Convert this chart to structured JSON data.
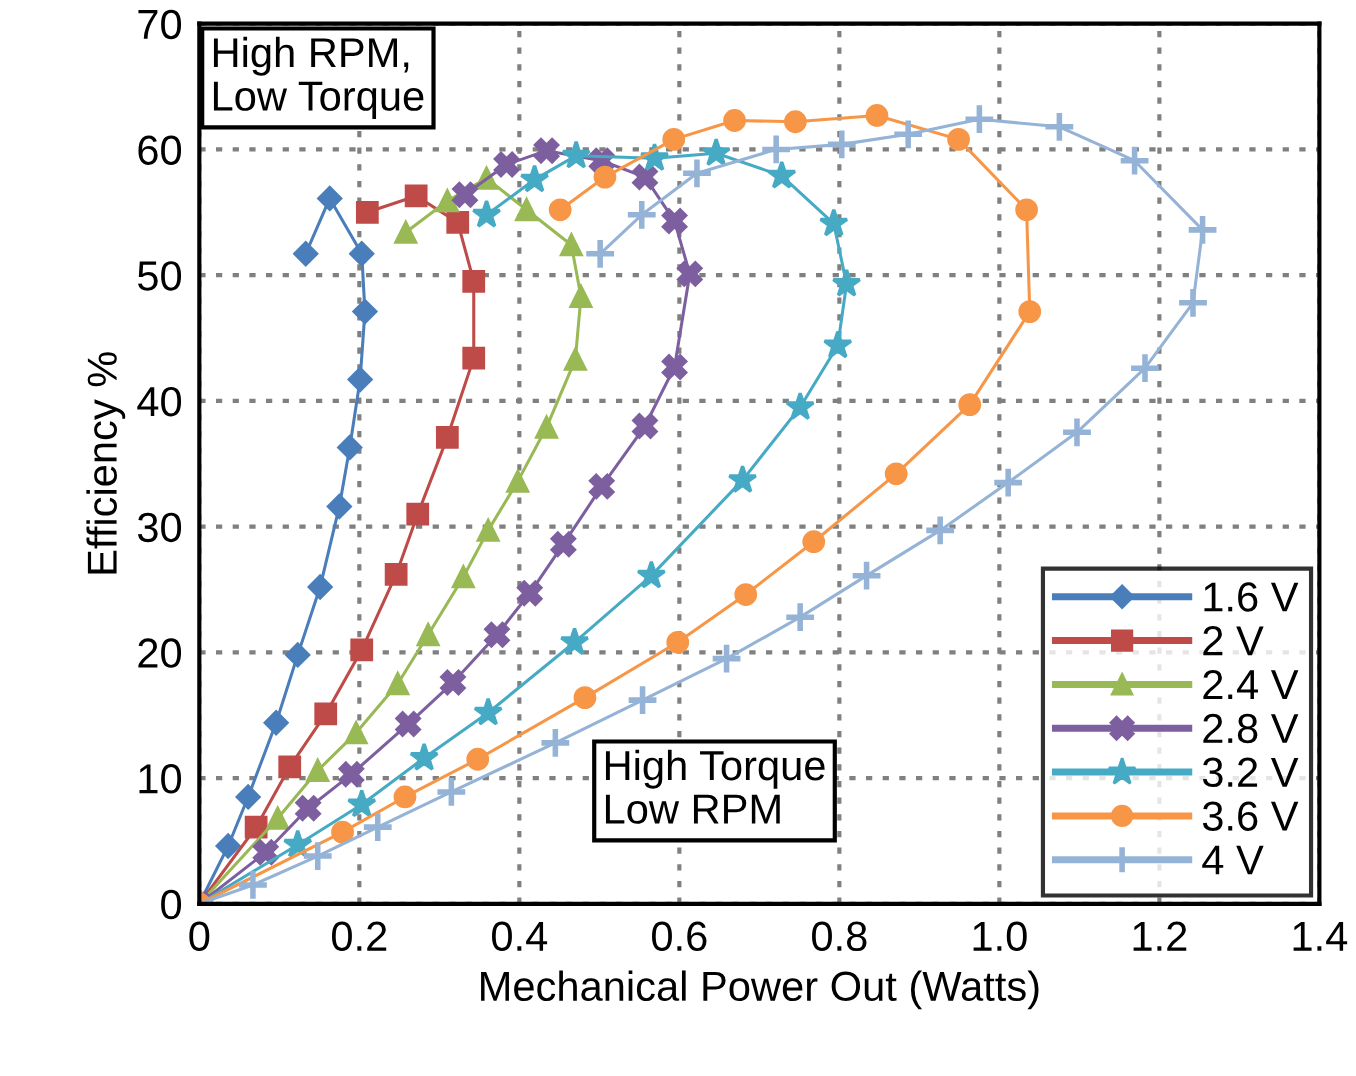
{
  "chart_data": {
    "type": "line",
    "xlabel": "Mechanical Power Out (Watts)",
    "ylabel": "Efficiency %",
    "xlim": [
      0,
      1.4
    ],
    "xticks": [
      0,
      0.2,
      0.4,
      0.6,
      0.8,
      {
        "value": 1,
        "label": "1.0"
      },
      1.2,
      1.4
    ],
    "ylim": [
      0,
      70
    ],
    "yticks": [
      0,
      10,
      20,
      30,
      40,
      50,
      60,
      70
    ],
    "grid": true,
    "legend": "bottom right",
    "line_style": "solid",
    "annotations": [
      "High RPM,\nLow Torque",
      "High Torque\nLow RPM"
    ],
    "series": [
      {
        "name": "1.6 V",
        "color": "#4a7ebb",
        "marker": "diamond",
        "x": [
          0,
          0.036,
          0.061,
          0.096,
          0.123,
          0.151,
          0.175,
          0.188,
          0.201,
          0.207,
          0.203,
          0.163,
          0.133
        ],
        "values": [
          0,
          4.6,
          8.5,
          14.4,
          19.8,
          25.2,
          31.6,
          36.3,
          41.7,
          47.1,
          51.7,
          56.1,
          51.7
        ]
      },
      {
        "name": "2 V",
        "color": "#be4b48",
        "marker": "square",
        "x": [
          0,
          0.071,
          0.113,
          0.158,
          0.203,
          0.246,
          0.273,
          0.31,
          0.343,
          0.343,
          0.323,
          0.271,
          0.21
        ],
        "values": [
          0,
          6.1,
          10.9,
          15.1,
          20.2,
          26.2,
          31.0,
          37.1,
          43.4,
          49.5,
          54.2,
          56.3,
          55.0
        ]
      },
      {
        "name": "2.4 V",
        "color": "#98b954",
        "marker": "triangle",
        "x": [
          0,
          0.098,
          0.148,
          0.196,
          0.248,
          0.286,
          0.33,
          0.361,
          0.398,
          0.434,
          0.47,
          0.477,
          0.465,
          0.409,
          0.359,
          0.31,
          0.258
        ],
        "values": [
          0,
          6.8,
          10.6,
          13.6,
          17.5,
          21.4,
          26.0,
          29.7,
          33.6,
          37.9,
          43.3,
          48.3,
          52.4,
          55.2,
          57.7,
          55.9,
          53.4
        ]
      },
      {
        "name": "2.8 V",
        "color": "#7d5fa0",
        "marker": "cross",
        "x": [
          0,
          0.083,
          0.136,
          0.19,
          0.261,
          0.317,
          0.372,
          0.413,
          0.455,
          0.503,
          0.557,
          0.594,
          0.613,
          0.594,
          0.557,
          0.503,
          0.434,
          0.384,
          0.332
        ],
        "values": [
          0,
          4.1,
          7.6,
          10.3,
          14.3,
          17.6,
          21.4,
          24.7,
          28.6,
          33.2,
          38.0,
          42.7,
          50.1,
          54.3,
          57.8,
          59.1,
          59.9,
          58.8,
          56.4
        ]
      },
      {
        "name": "3.2 V",
        "color": "#46aac5",
        "marker": "star",
        "x": [
          0,
          0.123,
          0.203,
          0.281,
          0.361,
          0.469,
          0.565,
          0.679,
          0.751,
          0.798,
          0.809,
          0.793,
          0.728,
          0.646,
          0.569,
          0.471,
          0.419,
          0.359
        ],
        "values": [
          0,
          4.7,
          7.9,
          11.6,
          15.2,
          20.8,
          26.1,
          33.7,
          39.5,
          44.4,
          49.3,
          54.1,
          57.9,
          59.7,
          59.3,
          59.5,
          57.6,
          54.8
        ]
      },
      {
        "name": "3.6 V",
        "color": "#f79646",
        "marker": "circle",
        "x": [
          0,
          0.179,
          0.257,
          0.348,
          0.482,
          0.598,
          0.683,
          0.768,
          0.871,
          0.963,
          1.038,
          1.034,
          0.949,
          0.847,
          0.745,
          0.669,
          0.593,
          0.507,
          0.451
        ],
        "values": [
          0,
          5.7,
          8.5,
          11.5,
          16.4,
          20.8,
          24.6,
          28.8,
          34.2,
          39.7,
          47.1,
          55.2,
          60.8,
          62.7,
          62.2,
          62.3,
          60.8,
          57.8,
          55.2
        ]
      },
      {
        "name": "4 V",
        "color": "#94b3d6",
        "marker": "plus",
        "x": [
          0,
          0.067,
          0.148,
          0.223,
          0.315,
          0.445,
          0.554,
          0.659,
          0.751,
          0.834,
          0.926,
          1.011,
          1.097,
          1.182,
          1.242,
          1.254,
          1.169,
          1.075,
          0.975,
          0.886,
          0.803,
          0.721,
          0.622,
          0.553,
          0.501
        ],
        "values": [
          0,
          1.5,
          3.8,
          6.1,
          8.9,
          12.8,
          16.2,
          19.5,
          22.8,
          26.1,
          29.7,
          33.5,
          37.5,
          42.6,
          47.8,
          53.6,
          59.1,
          61.8,
          62.4,
          61.2,
          60.4,
          60.0,
          58.1,
          54.8,
          51.7
        ]
      }
    ]
  }
}
